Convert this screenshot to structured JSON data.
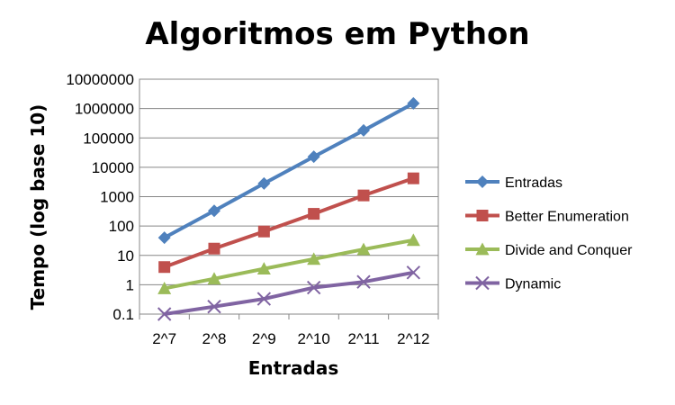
{
  "chart_data": {
    "type": "line",
    "title": "Algoritmos em Python",
    "xlabel": "Entradas",
    "ylabel": "Tempo (log base 10)",
    "categories": [
      "2^7",
      "2^8",
      "2^9",
      "2^10",
      "2^11",
      "2^12"
    ],
    "y_scale": "log10",
    "ylim": [
      0.1,
      10000000
    ],
    "y_ticks": [
      "0.1",
      "1",
      "10",
      "100",
      "1000",
      "10000",
      "100000",
      "1000000",
      "10000000"
    ],
    "grid": "horizontal",
    "legend_position": "right",
    "series": [
      {
        "name": "Entradas",
        "color": "#4F81BD",
        "marker": "diamond",
        "values": [
          40,
          330,
          2800,
          23000,
          180000,
          1500000
        ]
      },
      {
        "name": "Better Enumeration",
        "color": "#C0504D",
        "marker": "square",
        "values": [
          4,
          17,
          65,
          260,
          1100,
          4200
        ]
      },
      {
        "name": "Divide and Conquer",
        "color": "#9BBB59",
        "marker": "triangle",
        "values": [
          0.75,
          1.6,
          3.5,
          7.5,
          16,
          33
        ]
      },
      {
        "name": "Dynamic",
        "color": "#8064A2",
        "marker": "x",
        "values": [
          0.1,
          0.18,
          0.33,
          0.8,
          1.25,
          2.6
        ]
      }
    ]
  }
}
